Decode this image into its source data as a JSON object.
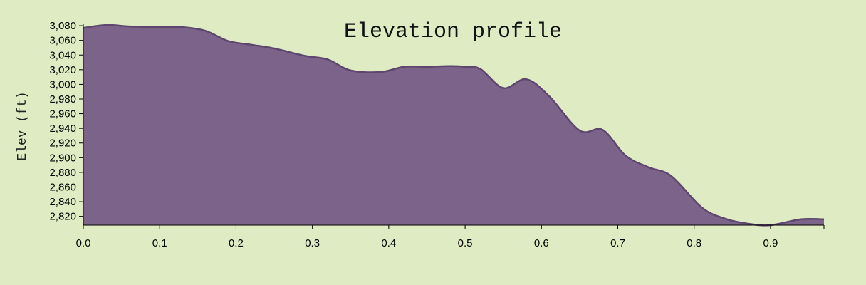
{
  "chart_data": {
    "type": "area",
    "title": "Elevation profile",
    "xlabel": "",
    "ylabel": "Elev (ft)",
    "xlim": [
      0,
      0.97
    ],
    "ylim": [
      2808,
      3083
    ],
    "grid": false,
    "legend": "none",
    "x_ticks": [
      0.0,
      0.1,
      0.2,
      0.3,
      0.4,
      0.5,
      0.6,
      0.7,
      0.8,
      0.9
    ],
    "x_tick_labels": [
      "0.0",
      "0.1",
      "0.2",
      "0.3",
      "0.4",
      "0.5",
      "0.6",
      "0.7",
      "0.8",
      "0.9"
    ],
    "y_ticks": [
      2820,
      2840,
      2860,
      2880,
      2900,
      2920,
      2940,
      2960,
      2980,
      3000,
      3020,
      3040,
      3060,
      3080
    ],
    "y_tick_labels": [
      "2,820",
      "2,840",
      "2,860",
      "2,880",
      "2,900",
      "2,920",
      "2,940",
      "2,960",
      "2,980",
      "3,000",
      "3,020",
      "3,040",
      "3,060",
      "3,080"
    ],
    "fill_color": "#7b6389",
    "line_color": "#5e4670",
    "series": [
      {
        "x": [
          0.0,
          0.03,
          0.06,
          0.1,
          0.13,
          0.16,
          0.19,
          0.22,
          0.25,
          0.29,
          0.32,
          0.35,
          0.39,
          0.42,
          0.45,
          0.48,
          0.5,
          0.52,
          0.55,
          0.58,
          0.61,
          0.65,
          0.68,
          0.71,
          0.74,
          0.77,
          0.81,
          0.84,
          0.87,
          0.9,
          0.94,
          0.97
        ],
        "y": [
          3077,
          3081,
          3079,
          3078,
          3078,
          3073,
          3059,
          3054,
          3049,
          3039,
          3034,
          3019,
          3017,
          3024,
          3024,
          3025,
          3024,
          3021,
          2995,
          3007,
          2984,
          2937,
          2938,
          2903,
          2887,
          2875,
          2832,
          2817,
          2810,
          2808,
          2816,
          2816
        ]
      }
    ]
  }
}
